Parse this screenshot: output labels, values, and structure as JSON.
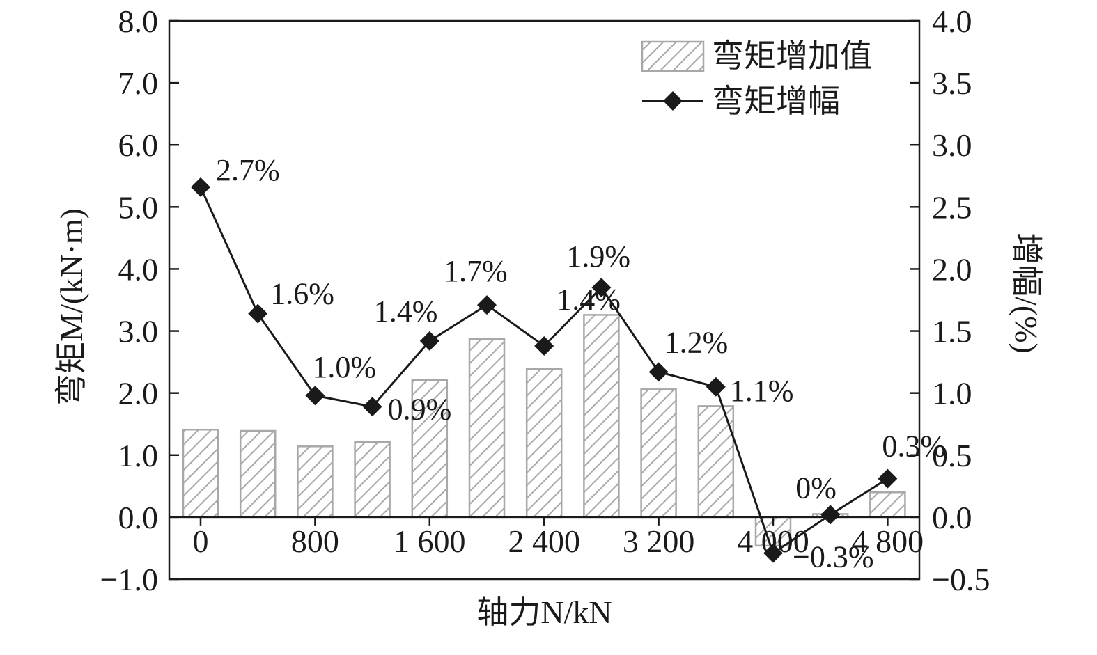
{
  "chart_data": {
    "type": "bar+line",
    "xlabel": "轴力N/kN",
    "ylabel_left": "弯矩M/(kN·m)",
    "ylabel_right": "增幅/(%)",
    "x_values": [
      0,
      400,
      800,
      1200,
      1600,
      2000,
      2400,
      2800,
      3200,
      3600,
      4000,
      4400,
      4800
    ],
    "x_tick_values": [
      0,
      800,
      1600,
      2400,
      3200,
      4000,
      4800
    ],
    "x_tick_labels": [
      "0",
      "800",
      "1 600",
      "2 400",
      "3 200",
      "4 000",
      "4 800"
    ],
    "ylim_left": [
      -1.0,
      8.0
    ],
    "ylim_right": [
      -0.5,
      4.0
    ],
    "y_left_ticks": [
      "−1.0",
      "0.0",
      "1.0",
      "2.0",
      "3.0",
      "4.0",
      "5.0",
      "6.0",
      "7.0",
      "8.0"
    ],
    "y_right_ticks": [
      "−0.5",
      "0.0",
      "0.5",
      "1.0",
      "1.5",
      "2.0",
      "2.5",
      "3.0",
      "3.5",
      "4.0"
    ],
    "series": [
      {
        "name": "弯矩增加值",
        "kind": "bar",
        "axis": "left",
        "values": [
          1.41,
          1.39,
          1.14,
          1.21,
          2.21,
          2.87,
          2.39,
          3.26,
          2.06,
          1.79,
          -0.46,
          0.05,
          0.4
        ]
      },
      {
        "name": "弯矩增幅",
        "kind": "line",
        "axis": "right",
        "values": [
          2.66,
          1.64,
          0.98,
          0.89,
          1.42,
          1.71,
          1.38,
          1.85,
          1.17,
          1.05,
          -0.29,
          0.02,
          0.31
        ],
        "labels": [
          "2.7%",
          "1.6%",
          "1.0%",
          "0.9%",
          "1.4%",
          "1.7%",
          "1.4%",
          "1.9%",
          "1.2%",
          "1.1%",
          "−0.3%",
          "0%",
          "0.3%"
        ]
      }
    ],
    "legend_position": "top-right",
    "grid": false,
    "colors": {
      "axis": "#1a1a1a",
      "bar_stroke": "#a8a8a8",
      "hatch": "#a8a8a8",
      "line": "#1a1a1a",
      "marker": "#1a1a1a"
    }
  }
}
